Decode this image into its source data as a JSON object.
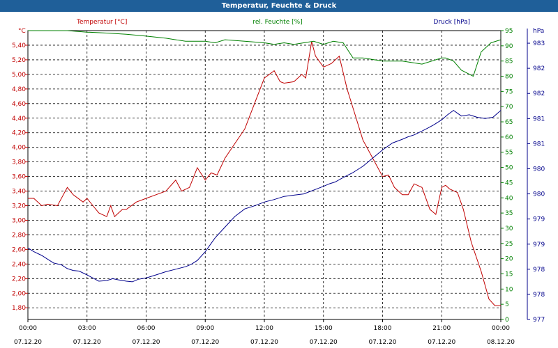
{
  "window": {
    "title": "Temperatur, Feuchte & Druck"
  },
  "chart_data": {
    "type": "line",
    "title": "Temperatur, Feuchte & Druck",
    "legend_placement": "top",
    "grid": true,
    "x_ticks": [
      {
        "value": 0,
        "time": "00:00",
        "date": "07.12.20"
      },
      {
        "value": 3,
        "time": "03:00",
        "date": "07.12.20"
      },
      {
        "value": 6,
        "time": "06:00",
        "date": "07.12.20"
      },
      {
        "value": 9,
        "time": "09:00",
        "date": "07.12.20"
      },
      {
        "value": 12,
        "time": "12:00",
        "date": "07.12.20"
      },
      {
        "value": 15,
        "time": "15:00",
        "date": "07.12.20"
      },
      {
        "value": 18,
        "time": "18:00",
        "date": "07.12.20"
      },
      {
        "value": 21,
        "time": "21:00",
        "date": "07.12.20"
      },
      {
        "value": 24,
        "time": "00:00",
        "date": "08.12.20"
      }
    ],
    "xlim": [
      0,
      24
    ],
    "axes": {
      "temperature": {
        "unit": "°C",
        "color": "#c00000",
        "ylim": [
          1.64,
          5.6
        ],
        "ticks": [
          "1,80",
          "2,00",
          "2,20",
          "2,40",
          "2,60",
          "2,80",
          "3,00",
          "3,20",
          "3,40",
          "3,60",
          "3,80",
          "4,00",
          "4,20",
          "4,40",
          "4,60",
          "4,80",
          "5,00",
          "5,20",
          "5,40"
        ],
        "tick_values": [
          1.8,
          2.0,
          2.2,
          2.4,
          2.6,
          2.8,
          3.0,
          3.2,
          3.4,
          3.6,
          3.8,
          4.0,
          4.2,
          4.4,
          4.6,
          4.8,
          5.0,
          5.2,
          5.4
        ]
      },
      "humidity": {
        "unit": "%",
        "color": "#008000",
        "ylim": [
          0,
          95
        ],
        "ticks": [
          "0",
          "5",
          "10",
          "15",
          "20",
          "25",
          "30",
          "35",
          "40",
          "45",
          "50",
          "55",
          "60",
          "65",
          "70",
          "75",
          "80",
          "85",
          "90",
          "95"
        ],
        "tick_values": [
          0,
          5,
          10,
          15,
          20,
          25,
          30,
          35,
          40,
          45,
          50,
          55,
          60,
          65,
          70,
          75,
          80,
          85,
          90,
          95
        ]
      },
      "pressure": {
        "unit": "hPa",
        "color": "#00008b",
        "ticks": [
          "977",
          "978",
          "978",
          "979",
          "979",
          "980",
          "980",
          "981",
          "981",
          "982",
          "982",
          "983"
        ],
        "tick_fractions": [
          0.0,
          0.0869,
          0.1739,
          0.2608,
          0.3478,
          0.4348,
          0.5217,
          0.6087,
          0.6956,
          0.7826,
          0.8696,
          0.9565
        ]
      }
    },
    "series": [
      {
        "name": "Temperatur [°C]",
        "axis": "temperature",
        "color": "#c00000",
        "x": [
          0,
          0.3,
          0.7,
          1.0,
          1.5,
          2.0,
          2.3,
          2.8,
          3.0,
          3.3,
          3.6,
          4.0,
          4.2,
          4.4,
          4.6,
          4.8,
          5.0,
          5.5,
          6.0,
          6.5,
          7.0,
          7.5,
          7.8,
          8.2,
          8.6,
          9.0,
          9.3,
          9.6,
          10.0,
          10.5,
          11.0,
          11.5,
          12.0,
          12.5,
          12.8,
          13.0,
          13.5,
          13.9,
          14.1,
          14.4,
          14.6,
          15.0,
          15.4,
          15.8,
          16.2,
          16.6,
          17.0,
          17.5,
          18.0,
          18.3,
          18.6,
          19.0,
          19.3,
          19.6,
          20.0,
          20.4,
          20.7,
          21.0,
          21.2,
          21.4,
          21.8,
          22.1,
          22.5,
          23.0,
          23.4,
          23.7,
          24.0
        ],
        "y": [
          3.3,
          3.3,
          3.2,
          3.22,
          3.2,
          3.45,
          3.35,
          3.25,
          3.3,
          3.2,
          3.1,
          3.05,
          3.2,
          3.05,
          3.1,
          3.15,
          3.15,
          3.25,
          3.3,
          3.35,
          3.4,
          3.55,
          3.4,
          3.45,
          3.72,
          3.55,
          3.65,
          3.62,
          3.85,
          4.05,
          4.25,
          4.6,
          4.95,
          5.05,
          4.9,
          4.88,
          4.9,
          5.0,
          4.95,
          5.45,
          5.25,
          5.1,
          5.15,
          5.25,
          4.8,
          4.45,
          4.1,
          3.85,
          3.6,
          3.62,
          3.45,
          3.35,
          3.35,
          3.5,
          3.45,
          3.15,
          3.08,
          3.45,
          3.48,
          3.43,
          3.38,
          3.15,
          2.7,
          2.3,
          1.92,
          1.83,
          1.83
        ]
      },
      {
        "name": "rel. Feuchte [%]",
        "axis": "humidity",
        "color": "#008000",
        "x": [
          0,
          1,
          2,
          3,
          4,
          5,
          6,
          7,
          7.5,
          8,
          9,
          9.5,
          10,
          11,
          12,
          12.5,
          13,
          13.5,
          14,
          14.5,
          15,
          15.5,
          16,
          16.5,
          17,
          17.5,
          18,
          19,
          20,
          21,
          21.2,
          21.6,
          22,
          22.3,
          22.6,
          23,
          23.5,
          24
        ],
        "y": [
          95,
          95,
          95,
          94.5,
          94.2,
          93.8,
          93.2,
          92.5,
          92,
          91.5,
          91.5,
          91,
          92,
          91.5,
          91,
          90.5,
          91,
          90.5,
          91,
          91.5,
          90.5,
          91.5,
          91,
          86,
          86,
          85.5,
          85,
          85,
          84,
          86,
          86,
          85,
          82,
          81,
          80,
          88,
          91,
          92
        ]
      },
      {
        "name": "Druck [hPa]",
        "axis": "pressure",
        "color": "#00008b",
        "x": [
          0,
          0.3,
          0.7,
          1.0,
          1.3,
          1.7,
          2.0,
          2.3,
          2.6,
          3.0,
          3.3,
          3.6,
          4.0,
          4.3,
          4.6,
          5.0,
          5.3,
          5.6,
          6.0,
          6.5,
          7.0,
          7.5,
          8.0,
          8.3,
          8.6,
          9.0,
          9.5,
          10.0,
          10.5,
          11.0,
          11.5,
          12.0,
          12.5,
          13.0,
          13.5,
          14.0,
          14.5,
          15.0,
          15.3,
          15.6,
          16.0,
          16.5,
          17.0,
          17.5,
          18.0,
          18.5,
          19.0,
          19.3,
          19.6,
          20.0,
          20.3,
          20.6,
          21.0,
          21.3,
          21.6,
          22.0,
          22.4,
          22.8,
          23.2,
          23.6,
          24.0
        ],
        "y": [
          0.2478,
          0.2348,
          0.2217,
          0.2087,
          0.1957,
          0.1891,
          0.1761,
          0.1696,
          0.1674,
          0.1543,
          0.1435,
          0.1326,
          0.1348,
          0.1413,
          0.137,
          0.1326,
          0.1304,
          0.1391,
          0.1435,
          0.1543,
          0.1652,
          0.1739,
          0.1826,
          0.1913,
          0.2043,
          0.2348,
          0.2826,
          0.3196,
          0.3565,
          0.3826,
          0.3935,
          0.4065,
          0.4152,
          0.4261,
          0.4304,
          0.4348,
          0.4478,
          0.4609,
          0.4696,
          0.4761,
          0.4913,
          0.5087,
          0.5304,
          0.5587,
          0.587,
          0.6109,
          0.6239,
          0.6326,
          0.6391,
          0.6522,
          0.663,
          0.6739,
          0.6913,
          0.7087,
          0.7239,
          0.7043,
          0.7087,
          0.7,
          0.6957,
          0.7,
          0.7239
        ]
      }
    ]
  }
}
